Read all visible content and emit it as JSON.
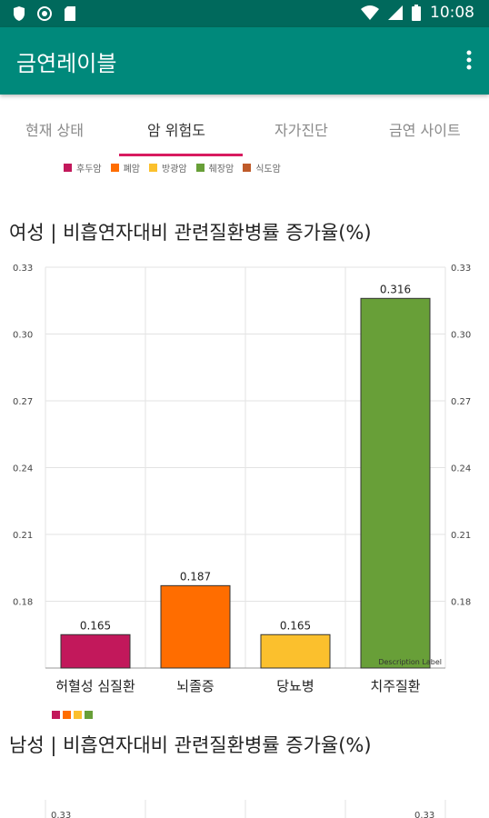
{
  "status_bar": {
    "time": "10:08"
  },
  "app_bar": {
    "title": "금연레이블"
  },
  "tabs": [
    {
      "label": "현재 상태"
    },
    {
      "label": "암 위험도"
    },
    {
      "label": "자가진단"
    },
    {
      "label": "금연 사이트"
    }
  ],
  "legend": [
    {
      "label": "후두암",
      "color": "#c2185b"
    },
    {
      "label": "폐암",
      "color": "#ff6d00"
    },
    {
      "label": "방광암",
      "color": "#fbc02d"
    },
    {
      "label": "췌장암",
      "color": "#689f38"
    },
    {
      "label": "식도암",
      "color": "#bf5b2a"
    }
  ],
  "chart_data": [
    {
      "type": "bar",
      "title": "여성 | 비흡연자대비 관련질환병률 증가율(%)",
      "categories": [
        "허혈성 심질환",
        "뇌졸증",
        "당뇨병",
        "치주질환"
      ],
      "values": [
        0.165,
        0.187,
        0.165,
        0.316
      ],
      "colors": [
        "#c2185b",
        "#ff6d00",
        "#fbc02d",
        "#689f38"
      ],
      "value_labels": [
        "0.165",
        "0.187",
        "0.165",
        "0.316"
      ],
      "y_ticks": [
        "0.18",
        "0.21",
        "0.24",
        "0.27",
        "0.30",
        "0.33"
      ],
      "ylim": [
        0.15,
        0.33
      ],
      "description_label": "Description Label",
      "grid": true
    },
    {
      "type": "bar",
      "title": "남성 | 비흡연자대비 관련질환병률 증가율(%)",
      "legend_colors": [
        "#c2185b",
        "#ff6d00",
        "#fbc02d",
        "#689f38"
      ],
      "y_ticks": [
        "0.33"
      ],
      "grid": true
    }
  ]
}
